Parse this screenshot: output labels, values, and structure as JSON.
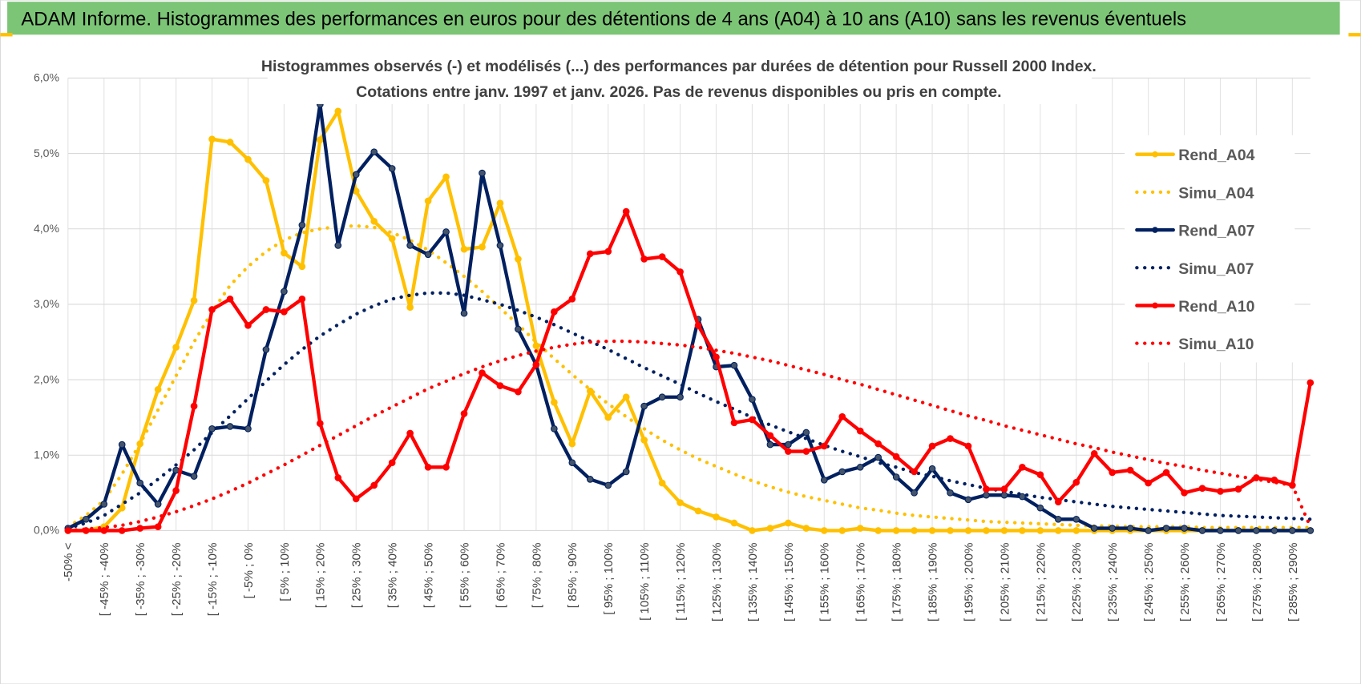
{
  "header": {
    "title": "ADAM Informe. Histogrammes des performances en euros pour des détentions de 4 ans (A04) à 10 ans (A10) sans les revenus éventuels"
  },
  "chart_data": {
    "type": "line",
    "subtitle": [
      "Histogrammes observés (-) et modélisés (...) des performances par durées de détention pour Russell 2000 Index.",
      "Cotations entre janv. 1997 et janv. 2026. Pas de revenus disponibles ou pris en compte."
    ],
    "categories": [
      "-50% <",
      null,
      "[ -45% ; -40%",
      null,
      "[ -35% ; -30%",
      null,
      "[ -25% ; -20%",
      null,
      "[ -15% ; -10%",
      null,
      "[ -5% ; 0%",
      null,
      "[ 5% ; 10%",
      null,
      "[ 15% ; 20%",
      null,
      "[ 25% ; 30%",
      null,
      "[ 35% ; 40%",
      null,
      "[ 45% ; 50%",
      null,
      "[ 55% ; 60%",
      null,
      "[ 65% ; 70%",
      null,
      "[ 75% ; 80%",
      null,
      "[ 85% ; 90%",
      null,
      "[ 95% ; 100%",
      null,
      "[ 105% ; 110%",
      null,
      "[ 115% ; 120%",
      null,
      "[ 125% ; 130%",
      null,
      "[ 135% ; 140%",
      null,
      "[ 145% ; 150%",
      null,
      "[ 155% ; 160%",
      null,
      "[ 165% ; 170%",
      null,
      "[ 175% ; 180%",
      null,
      "[ 185% ; 190%",
      null,
      "[ 195% ; 200%",
      null,
      "[ 205% ; 210%",
      null,
      "[ 215% ; 220%",
      null,
      "[ 225% ; 230%",
      null,
      "[ 235% ; 240%",
      null,
      "[ 245% ; 250%",
      null,
      "[ 255% ; 260%",
      null,
      "[ 265% ; 270%",
      null,
      "[ 275% ; 280%",
      null,
      "[ 285% ; 290%",
      null
    ],
    "ylim": [
      0,
      6
    ],
    "yticks": [
      {
        "value": 0,
        "label": "0,0%"
      },
      {
        "value": 1,
        "label": "1,0%"
      },
      {
        "value": 2,
        "label": "2,0%"
      },
      {
        "value": 3,
        "label": "3,0%"
      },
      {
        "value": 4,
        "label": "4,0%"
      },
      {
        "value": 5,
        "label": "5,0%"
      },
      {
        "value": 6,
        "label": "6,0%"
      }
    ],
    "grid": true,
    "legend": "right",
    "series": [
      {
        "name": "Rend_A04",
        "color": "#FFC000",
        "style": "solid",
        "markers": true,
        "values": [
          0,
          0,
          0.05,
          0.3,
          1.15,
          1.87,
          2.43,
          3.05,
          5.19,
          5.15,
          4.92,
          4.64,
          3.68,
          3.5,
          5.18,
          5.56,
          4.5,
          4.1,
          3.87,
          2.96,
          4.37,
          4.69,
          3.73,
          3.76,
          4.34,
          3.6,
          2.45,
          1.7,
          1.15,
          1.85,
          1.5,
          1.77,
          1.2,
          0.63,
          0.37,
          0.26,
          0.18,
          0.1,
          0,
          0.03,
          0.1,
          0.03,
          0,
          0,
          0.03,
          0,
          0,
          0,
          0,
          0,
          0,
          0,
          0,
          0,
          0,
          0,
          0,
          0,
          0,
          0,
          0,
          0,
          0,
          0,
          0,
          0,
          0,
          0,
          0,
          0
        ]
      },
      {
        "name": "Simu_A04",
        "color": "#FFC000",
        "style": "dotted",
        "markers": false,
        "values": [
          0.05,
          0.2,
          0.4,
          0.75,
          1.15,
          1.6,
          2.05,
          2.5,
          2.9,
          3.25,
          3.5,
          3.7,
          3.85,
          3.95,
          4,
          4.03,
          4.04,
          4.02,
          3.95,
          3.85,
          3.72,
          3.55,
          3.37,
          3.17,
          2.95,
          2.73,
          2.5,
          2.28,
          2.07,
          1.87,
          1.68,
          1.51,
          1.35,
          1.2,
          1.07,
          0.95,
          0.85,
          0.75,
          0.66,
          0.58,
          0.51,
          0.45,
          0.4,
          0.35,
          0.3,
          0.27,
          0.23,
          0.2,
          0.18,
          0.16,
          0.14,
          0.12,
          0.11,
          0.1,
          0.09,
          0.08,
          0.07,
          0.06,
          0.06,
          0.05,
          0.05,
          0.05,
          0.05,
          0.04,
          0.04,
          0.04,
          0.04,
          0.04,
          0.04,
          0.04
        ]
      },
      {
        "name": "Rend_A07",
        "color": "#002060",
        "style": "solid",
        "markers": true,
        "values": [
          0.03,
          0.15,
          0.35,
          1.14,
          0.63,
          0.35,
          0.8,
          0.72,
          1.35,
          1.38,
          1.35,
          2.4,
          3.17,
          4.05,
          5.65,
          3.78,
          4.72,
          5.02,
          4.8,
          3.78,
          3.66,
          3.96,
          2.88,
          4.74,
          3.78,
          2.67,
          2.2,
          1.35,
          0.9,
          0.68,
          0.6,
          0.78,
          1.65,
          1.77,
          1.77,
          2.8,
          2.17,
          2.19,
          1.74,
          1.14,
          1.14,
          1.3,
          0.67,
          0.78,
          0.84,
          0.97,
          0.71,
          0.5,
          0.82,
          0.5,
          0.41,
          0.47,
          0.47,
          0.45,
          0.3,
          0.15,
          0.15,
          0.03,
          0.03,
          0.03,
          0,
          0.03,
          0.03,
          0,
          0,
          0,
          0,
          0,
          0,
          0
        ]
      },
      {
        "name": "Simu_A07",
        "color": "#002060",
        "style": "dotted",
        "markers": false,
        "values": [
          0.03,
          0.1,
          0.2,
          0.35,
          0.5,
          0.68,
          0.87,
          1.07,
          1.3,
          1.52,
          1.75,
          1.98,
          2.2,
          2.4,
          2.58,
          2.73,
          2.87,
          2.98,
          3.07,
          3.12,
          3.15,
          3.15,
          3.12,
          3.06,
          3,
          2.92,
          2.83,
          2.73,
          2.62,
          2.51,
          2.4,
          2.28,
          2.16,
          2.05,
          1.94,
          1.82,
          1.71,
          1.61,
          1.5,
          1.4,
          1.31,
          1.22,
          1.13,
          1.05,
          0.98,
          0.9,
          0.84,
          0.77,
          0.72,
          0.66,
          0.61,
          0.56,
          0.52,
          0.48,
          0.44,
          0.41,
          0.38,
          0.35,
          0.32,
          0.3,
          0.28,
          0.26,
          0.24,
          0.22,
          0.2,
          0.19,
          0.18,
          0.17,
          0.16,
          0.15
        ]
      },
      {
        "name": "Rend_A10",
        "color": "#FF0000",
        "style": "solid",
        "markers": true,
        "values": [
          0,
          0,
          0,
          0,
          0.03,
          0.05,
          0.53,
          1.65,
          2.93,
          3.07,
          2.72,
          2.93,
          2.9,
          3.07,
          1.42,
          0.7,
          0.42,
          0.6,
          0.9,
          1.29,
          0.84,
          0.84,
          1.55,
          2.09,
          1.92,
          1.84,
          2.2,
          2.9,
          3.07,
          3.67,
          3.7,
          4.23,
          3.6,
          3.63,
          3.43,
          2.72,
          2.3,
          1.43,
          1.47,
          1.26,
          1.05,
          1.05,
          1.12,
          1.51,
          1.32,
          1.15,
          0.98,
          0.78,
          1.12,
          1.22,
          1.12,
          0.55,
          0.55,
          0.84,
          0.74,
          0.38,
          0.64,
          1.02,
          0.77,
          0.8,
          0.63,
          0.77,
          0.5,
          0.56,
          0.52,
          0.55,
          0.7,
          0.67,
          0.6,
          1.96
        ]
      },
      {
        "name": "Simu_A10",
        "color": "#FF0000",
        "style": "dotted",
        "markers": false,
        "values": [
          0,
          0.02,
          0.04,
          0.07,
          0.12,
          0.18,
          0.25,
          0.33,
          0.42,
          0.52,
          0.63,
          0.75,
          0.87,
          1,
          1.13,
          1.26,
          1.39,
          1.52,
          1.64,
          1.76,
          1.88,
          1.98,
          2.08,
          2.17,
          2.25,
          2.32,
          2.38,
          2.43,
          2.47,
          2.5,
          2.51,
          2.51,
          2.5,
          2.48,
          2.46,
          2.43,
          2.39,
          2.35,
          2.3,
          2.25,
          2.19,
          2.13,
          2.07,
          2,
          1.94,
          1.87,
          1.8,
          1.73,
          1.66,
          1.59,
          1.52,
          1.46,
          1.39,
          1.33,
          1.27,
          1.21,
          1.15,
          1.1,
          1.04,
          0.99,
          0.94,
          0.89,
          0.85,
          0.8,
          0.76,
          0.72,
          0.68,
          0.64,
          0.6,
          0.05
        ]
      }
    ]
  }
}
